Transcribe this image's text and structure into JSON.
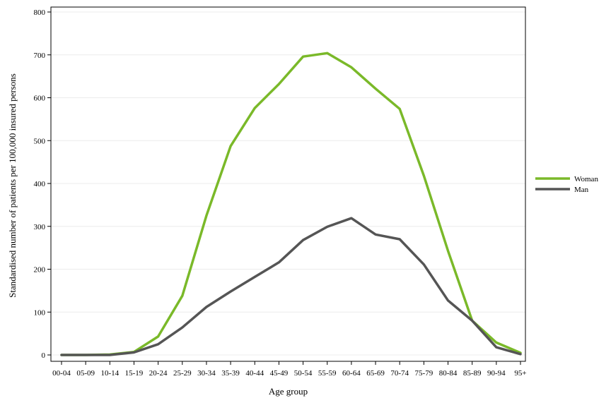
{
  "chart_data": {
    "type": "line",
    "xlabel": "Age group",
    "ylabel": "Standardised number of patients per 100,000 insured persons",
    "ylim": [
      0,
      800
    ],
    "yticks": [
      0,
      100,
      200,
      300,
      400,
      500,
      600,
      700,
      800
    ],
    "grid": true,
    "legend_position": "right",
    "categories": [
      "00-04",
      "05-09",
      "10-14",
      "15-19",
      "20-24",
      "25-29",
      "30-34",
      "35-39",
      "40-44",
      "45-49",
      "50-54",
      "55-59",
      "60-64",
      "65-69",
      "70-74",
      "75-79",
      "80-84",
      "85-89",
      "90-94",
      "95+"
    ],
    "series": [
      {
        "name": "Woman",
        "color": "#7ab929",
        "values": [
          0,
          0,
          1,
          7,
          43,
          138,
          325,
          487,
          576,
          632,
          696,
          704,
          671,
          621,
          574,
          418,
          243,
          80,
          29,
          5
        ]
      },
      {
        "name": "Man",
        "color": "#555555",
        "values": [
          0,
          0,
          0,
          6,
          25,
          64,
          112,
          148,
          182,
          216,
          268,
          299,
          319,
          281,
          270,
          211,
          127,
          80,
          18,
          2
        ]
      }
    ]
  }
}
